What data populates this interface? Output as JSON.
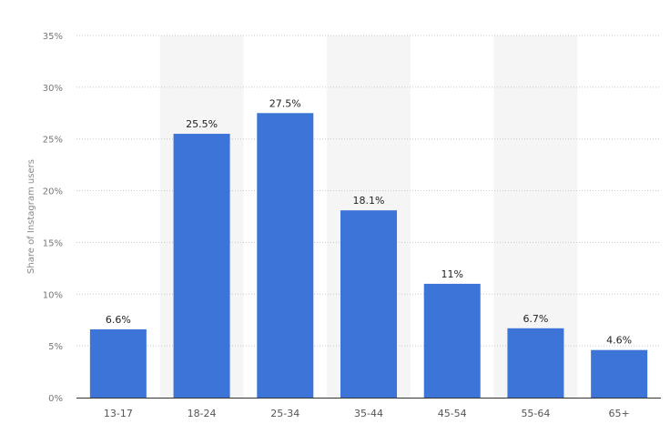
{
  "chart_data": {
    "type": "bar",
    "categories": [
      "13-17",
      "18-24",
      "25-34",
      "35-44",
      "45-54",
      "55-64",
      "65+"
    ],
    "values": [
      6.6,
      25.5,
      27.5,
      18.1,
      11,
      6.7,
      4.6
    ],
    "data_labels": [
      "6.6%",
      "25.5%",
      "27.5%",
      "18.1%",
      "11%",
      "6.7%",
      "4.6%"
    ],
    "ylabel": "Share of Instagram users",
    "ylim": [
      0,
      35
    ],
    "yticks": [
      0,
      5,
      10,
      15,
      20,
      25,
      30,
      35
    ],
    "ytick_labels": [
      "0%",
      "5%",
      "10%",
      "15%",
      "20%",
      "25%",
      "30%",
      "35%"
    ],
    "grid": true,
    "alternating_band_color": "#f5f5f5",
    "bar_color": "#3d74d8",
    "legend": "none"
  }
}
